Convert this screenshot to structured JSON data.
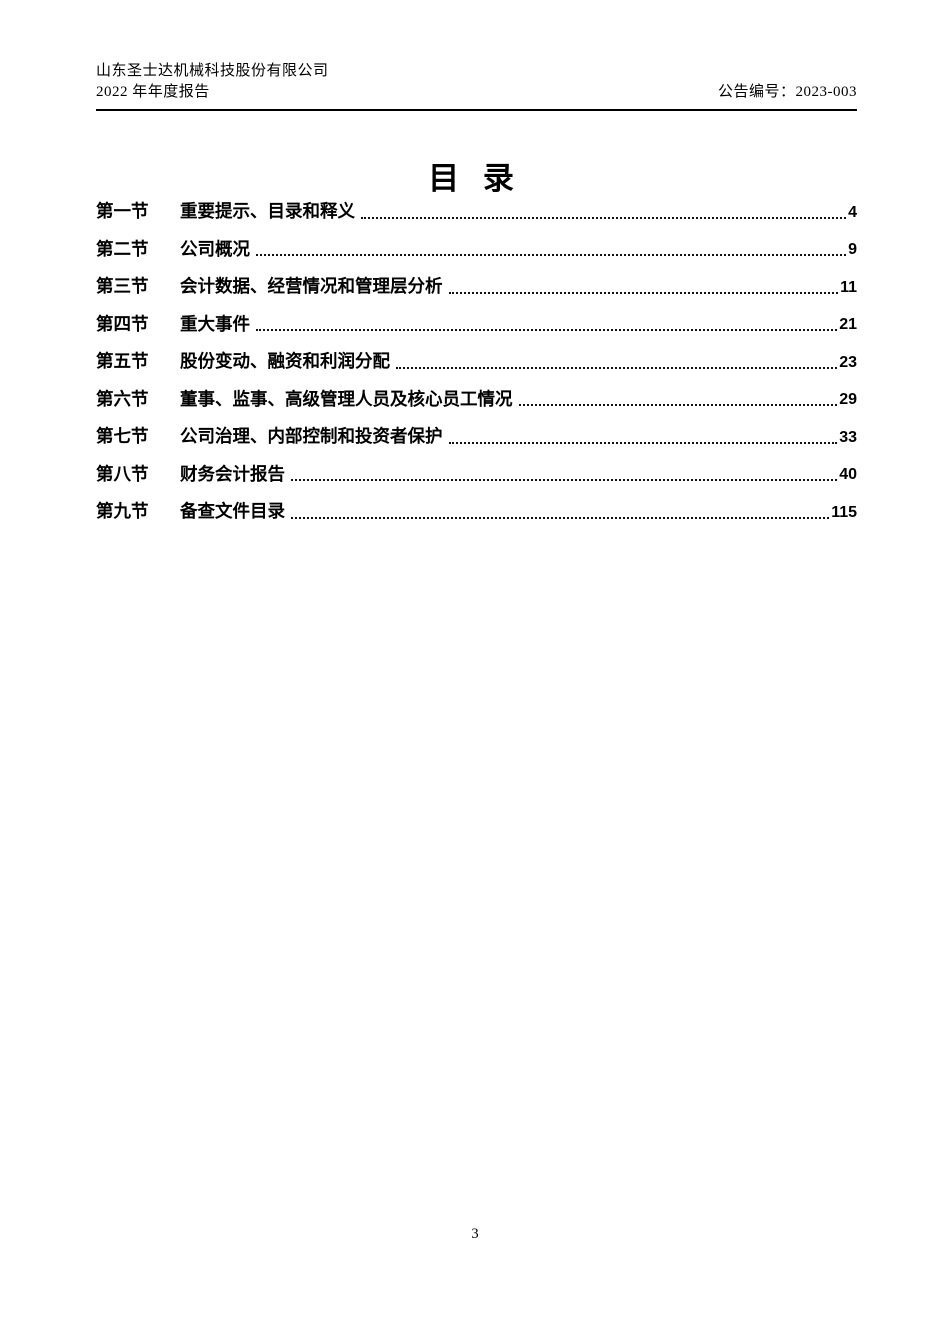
{
  "header": {
    "company_name": "山东圣士达机械科技股份有限公司",
    "report_title": "2022 年年度报告",
    "announcement_no": "公告编号：2023-003"
  },
  "toc": {
    "title": "目 录",
    "entries": [
      {
        "section": "第一节",
        "title": "重要提示、目录和释义",
        "page": "4"
      },
      {
        "section": "第二节",
        "title": "公司概况",
        "page": "9"
      },
      {
        "section": "第三节",
        "title": "会计数据、经营情况和管理层分析",
        "page": "11"
      },
      {
        "section": "第四节",
        "title": "重大事件",
        "page": "21"
      },
      {
        "section": "第五节",
        "title": "股份变动、融资和利润分配",
        "page": "23"
      },
      {
        "section": "第六节",
        "title": "董事、监事、高级管理人员及核心员工情况",
        "page": "29"
      },
      {
        "section": "第七节",
        "title": "公司治理、内部控制和投资者保护",
        "page": "33"
      },
      {
        "section": "第八节",
        "title": "财务会计报告",
        "page": "40"
      },
      {
        "section": "第九节",
        "title": "备查文件目录",
        "page": "115"
      }
    ]
  },
  "footer": {
    "page_number": "3"
  }
}
